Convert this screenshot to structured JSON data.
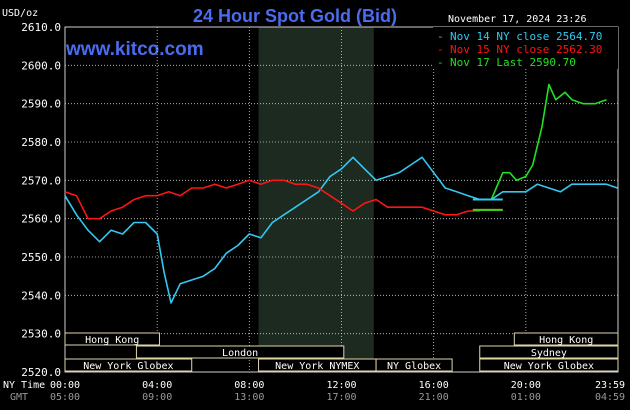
{
  "header": {
    "unit": "USD/oz",
    "title": "24 Hour Spot Gold (Bid)",
    "site": "www.kitco.com",
    "timestamp": "November 17, 2024 23:26"
  },
  "colors": {
    "nov14": "#33c8f4",
    "nov15": "#ff1414",
    "nov17": "#22e022",
    "grid": "#d0d0d0",
    "session_bg": "#1c2a20",
    "title": "#4a6cf0"
  },
  "chart_data": {
    "type": "line",
    "title": "24 Hour Spot Gold (Bid)",
    "ylabel": "USD/oz",
    "ylim": [
      2520,
      2610
    ],
    "yticks": [
      "2610.0",
      "2600.0",
      "2590.0",
      "2580.0",
      "2570.0",
      "2560.0",
      "2550.0",
      "2540.0",
      "2530.0",
      "2520.0"
    ],
    "xlim": [
      0,
      24
    ],
    "x_ny_labels": [
      "00:00",
      "04:00",
      "08:00",
      "12:00",
      "16:00",
      "20:00",
      "23:59"
    ],
    "x_gmt_labels": [
      "05:00",
      "09:00",
      "13:00",
      "17:00",
      "21:00",
      "01:00",
      "04:59"
    ],
    "x_axis_names": {
      "ny": "NY Time",
      "gmt": "GMT"
    },
    "legend_placement": "top-right",
    "grid": true,
    "session_shading": [
      8.4,
      13.4
    ],
    "series": [
      {
        "name": "Nov 14 NY close 2564.70",
        "color": "#33c8f4",
        "points": [
          [
            0,
            2566
          ],
          [
            0.5,
            2561
          ],
          [
            1,
            2557
          ],
          [
            1.5,
            2554
          ],
          [
            2,
            2557
          ],
          [
            2.5,
            2556
          ],
          [
            3,
            2559
          ],
          [
            3.5,
            2559
          ],
          [
            4,
            2556
          ],
          [
            4.3,
            2546
          ],
          [
            4.6,
            2538
          ],
          [
            5,
            2543
          ],
          [
            5.5,
            2544
          ],
          [
            6,
            2545
          ],
          [
            6.5,
            2547
          ],
          [
            7,
            2551
          ],
          [
            7.5,
            2553
          ],
          [
            8,
            2556
          ],
          [
            8.5,
            2555
          ],
          [
            9,
            2559
          ],
          [
            9.5,
            2561
          ],
          [
            10,
            2563
          ],
          [
            10.5,
            2565
          ],
          [
            11,
            2567
          ],
          [
            11.5,
            2571
          ],
          [
            12,
            2573
          ],
          [
            12.5,
            2576
          ],
          [
            13,
            2573
          ],
          [
            13.5,
            2570
          ],
          [
            14,
            2571
          ],
          [
            14.5,
            2572
          ],
          [
            15,
            2574
          ],
          [
            15.5,
            2576
          ],
          [
            16,
            2572
          ],
          [
            16.5,
            2568
          ],
          [
            17,
            2567
          ],
          [
            17.5,
            2566
          ],
          [
            18,
            2565
          ],
          [
            18.5,
            2565
          ],
          [
            19,
            2567
          ],
          [
            19.5,
            2567
          ],
          [
            20,
            2567
          ],
          [
            20.5,
            2569
          ],
          [
            21,
            2568
          ],
          [
            21.5,
            2567
          ],
          [
            22,
            2569
          ],
          [
            22.5,
            2569
          ],
          [
            23,
            2569
          ],
          [
            23.5,
            2569
          ],
          [
            23.98,
            2568
          ]
        ]
      },
      {
        "name": "Nov 15 NY close 2562.30",
        "color": "#ff1414",
        "points": [
          [
            0,
            2567
          ],
          [
            0.5,
            2566
          ],
          [
            1,
            2560
          ],
          [
            1.5,
            2560
          ],
          [
            2,
            2562
          ],
          [
            2.5,
            2563
          ],
          [
            3,
            2565
          ],
          [
            3.5,
            2566
          ],
          [
            4,
            2566
          ],
          [
            4.5,
            2567
          ],
          [
            5,
            2566
          ],
          [
            5.5,
            2568
          ],
          [
            6,
            2568
          ],
          [
            6.5,
            2569
          ],
          [
            7,
            2568
          ],
          [
            7.5,
            2569
          ],
          [
            8,
            2570
          ],
          [
            8.5,
            2569
          ],
          [
            9,
            2570
          ],
          [
            9.5,
            2570
          ],
          [
            10,
            2569
          ],
          [
            10.5,
            2569
          ],
          [
            11,
            2568
          ],
          [
            11.5,
            2566
          ],
          [
            12,
            2564
          ],
          [
            12.5,
            2562
          ],
          [
            13,
            2564
          ],
          [
            13.5,
            2565
          ],
          [
            14,
            2563
          ],
          [
            14.5,
            2563
          ],
          [
            15,
            2563
          ],
          [
            15.5,
            2563
          ],
          [
            16,
            2562
          ],
          [
            16.5,
            2561
          ],
          [
            17,
            2561
          ],
          [
            17.5,
            2562
          ],
          [
            18,
            2562
          ]
        ]
      },
      {
        "name": "Nov 17 Last 2590.70",
        "color": "#22e022",
        "points": [
          [
            18.5,
            2565
          ],
          [
            19,
            2572
          ],
          [
            19.3,
            2572
          ],
          [
            19.6,
            2570
          ],
          [
            20,
            2571
          ],
          [
            20.3,
            2574
          ],
          [
            20.7,
            2584
          ],
          [
            21,
            2595
          ],
          [
            21.3,
            2591
          ],
          [
            21.7,
            2593
          ],
          [
            22,
            2591
          ],
          [
            22.5,
            2590
          ],
          [
            23,
            2590
          ],
          [
            23.5,
            2591
          ]
        ]
      }
    ],
    "flat_segments": [
      {
        "series": "Nov 14 NY close 2564.70",
        "x": [
          17.7,
          19.0
        ],
        "y": 2565
      },
      {
        "series": "Nov 15 NY close 2562.30",
        "x": [
          17.7,
          19.0
        ],
        "y": 2562.3
      }
    ]
  },
  "sessions": [
    {
      "label": "Hong Kong",
      "row": 0,
      "x0": 0,
      "x1": 4.1
    },
    {
      "label": "Hong Kong",
      "row": 0,
      "x0": 19.5,
      "x1": 24
    },
    {
      "label": "London",
      "row": 1,
      "x0": 3.1,
      "x1": 12.1
    },
    {
      "label": "Sydney",
      "row": 1,
      "x0": 18.0,
      "x1": 24
    },
    {
      "label": "New York Globex",
      "row": 2,
      "x0": 0,
      "x1": 5.5
    },
    {
      "label": "New York NYMEX",
      "row": 2,
      "x0": 8.4,
      "x1": 13.5
    },
    {
      "label": "NY Globex",
      "row": 2,
      "x0": 13.5,
      "x1": 16.8
    },
    {
      "label": "New York Globex",
      "row": 2,
      "x0": 18.0,
      "x1": 24
    }
  ]
}
